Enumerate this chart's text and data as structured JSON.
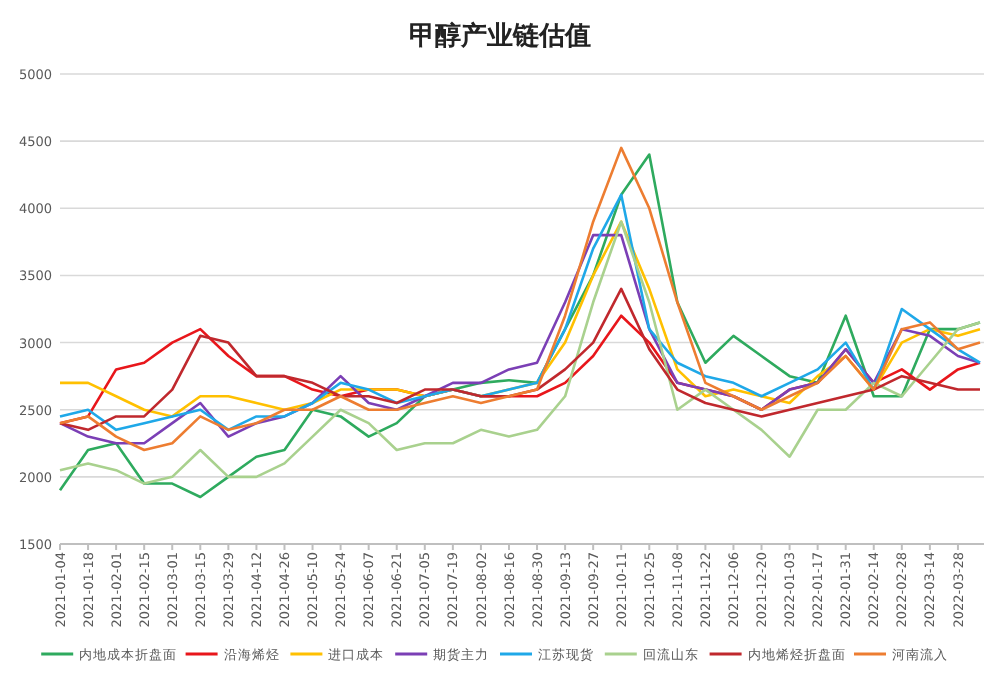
{
  "chart_data": {
    "type": "line",
    "title": "甲醇产业链估值",
    "x": [
      "2021-01-04",
      "2021-01-18",
      "2021-02-01",
      "2021-02-15",
      "2021-03-01",
      "2021-03-15",
      "2021-03-29",
      "2021-04-12",
      "2021-04-26",
      "2021-05-10",
      "2021-05-24",
      "2021-06-07",
      "2021-06-21",
      "2021-07-05",
      "2021-07-19",
      "2021-08-02",
      "2021-08-16",
      "2021-08-30",
      "2021-09-13",
      "2021-09-27",
      "2021-10-11",
      "2021-10-25",
      "2021-11-08",
      "2021-11-22",
      "2021-12-06",
      "2021-12-20",
      "2022-01-03",
      "2022-01-17",
      "2022-01-31",
      "2022-02-14",
      "2022-02-28",
      "2022-03-14",
      "2022-03-28",
      "2022-04-08"
    ],
    "xlim": [
      "2021-01-04",
      "2022-04-10"
    ],
    "xticks": [
      "2021-01-04",
      "2021-01-18",
      "2021-02-01",
      "2021-02-15",
      "2021-03-01",
      "2021-03-15",
      "2021-03-29",
      "2021-04-12",
      "2021-04-26",
      "2021-05-10",
      "2021-05-24",
      "2021-06-07",
      "2021-06-21",
      "2021-07-05",
      "2021-07-19",
      "2021-08-02",
      "2021-08-16",
      "2021-08-30",
      "2021-09-13",
      "2021-09-27",
      "2021-10-11",
      "2021-10-25",
      "2021-11-08",
      "2021-11-22",
      "2021-12-06",
      "2021-12-20",
      "2022-01-03",
      "2022-01-17",
      "2022-01-31",
      "2022-02-14",
      "2022-02-28",
      "2022-03-14",
      "2022-03-28"
    ],
    "ylim": [
      1500,
      5000
    ],
    "yticks": [
      1500,
      2000,
      2500,
      3000,
      3500,
      4000,
      4500,
      5000
    ],
    "grid": "y",
    "legend": "bottom",
    "series": [
      {
        "name": "内地成本折盘面",
        "color": "#2eaa5e",
        "values": [
          1900,
          2200,
          2250,
          1950,
          1950,
          1850,
          2000,
          2150,
          2200,
          2500,
          2450,
          2300,
          2400,
          2600,
          2650,
          2700,
          2720,
          2700,
          3100,
          3500,
          4100,
          4400,
          3300,
          2850,
          3050,
          2900,
          2750,
          2700,
          3200,
          2600,
          2600,
          3100,
          3100,
          3150
        ]
      },
      {
        "name": "沿海烯烃",
        "color": "#e8161b",
        "values": [
          2400,
          2450,
          2800,
          2850,
          3000,
          3100,
          2900,
          2750,
          2750,
          2650,
          2600,
          2650,
          2650,
          2600,
          2650,
          2600,
          2600,
          2600,
          2700,
          2900,
          3200,
          3000,
          2700,
          2650,
          2600,
          2500,
          2650,
          2700,
          2950,
          2700,
          2800,
          2650,
          2800,
          2850
        ]
      },
      {
        "name": "进口成本",
        "color": "#ffc000",
        "values": [
          2700,
          2700,
          2600,
          2500,
          2450,
          2600,
          2600,
          2550,
          2500,
          2550,
          2650,
          2650,
          2650,
          2600,
          2650,
          2600,
          2650,
          2700,
          3000,
          3500,
          3900,
          3400,
          2800,
          2600,
          2650,
          2600,
          2550,
          2750,
          2900,
          2650,
          3000,
          3100,
          3050,
          3100
        ]
      },
      {
        "name": "期货主力",
        "color": "#7b3fb5",
        "values": [
          2400,
          2300,
          2250,
          2250,
          2400,
          2550,
          2300,
          2400,
          2450,
          2550,
          2750,
          2550,
          2500,
          2600,
          2700,
          2700,
          2800,
          2850,
          3300,
          3800,
          3800,
          3100,
          2700,
          2650,
          2600,
          2500,
          2650,
          2700,
          2950,
          2700,
          3100,
          3050,
          2900,
          2850
        ]
      },
      {
        "name": "江苏现货",
        "color": "#1fa8e8",
        "values": [
          2450,
          2500,
          2350,
          2400,
          2450,
          2500,
          2350,
          2450,
          2450,
          2550,
          2700,
          2650,
          2550,
          2600,
          2650,
          2600,
          2650,
          2700,
          3100,
          3700,
          4100,
          3100,
          2850,
          2750,
          2700,
          2600,
          2700,
          2800,
          3000,
          2650,
          3250,
          3100,
          2950,
          2850
        ]
      },
      {
        "name": "回流山东",
        "color": "#a9d18e",
        "values": [
          2050,
          2100,
          2050,
          1950,
          2000,
          2200,
          2000,
          2000,
          2100,
          2300,
          2500,
          2400,
          2200,
          2250,
          2250,
          2350,
          2300,
          2350,
          2600,
          3300,
          3900,
          3300,
          2500,
          2650,
          2500,
          2350,
          2150,
          2500,
          2500,
          2700,
          2600,
          2850,
          3100,
          3150
        ]
      },
      {
        "name": "内地烯烃折盘面",
        "color": "#c0282d",
        "values": [
          2400,
          2350,
          2450,
          2450,
          2650,
          3050,
          3000,
          2750,
          2750,
          2700,
          2600,
          2600,
          2550,
          2650,
          2650,
          2600,
          2600,
          2650,
          2800,
          3000,
          3400,
          2950,
          2650,
          2550,
          2500,
          2450,
          2500,
          2550,
          2600,
          2650,
          2750,
          2700,
          2650,
          2650
        ]
      },
      {
        "name": "河南流入",
        "color": "#ed7d31",
        "values": [
          2400,
          2450,
          2300,
          2200,
          2250,
          2450,
          2350,
          2400,
          2500,
          2500,
          2600,
          2500,
          2500,
          2550,
          2600,
          2550,
          2600,
          2650,
          3200,
          3900,
          4450,
          4000,
          3300,
          2700,
          2600,
          2500,
          2600,
          2700,
          2900,
          2650,
          3100,
          3150,
          2950,
          3000
        ]
      }
    ]
  }
}
